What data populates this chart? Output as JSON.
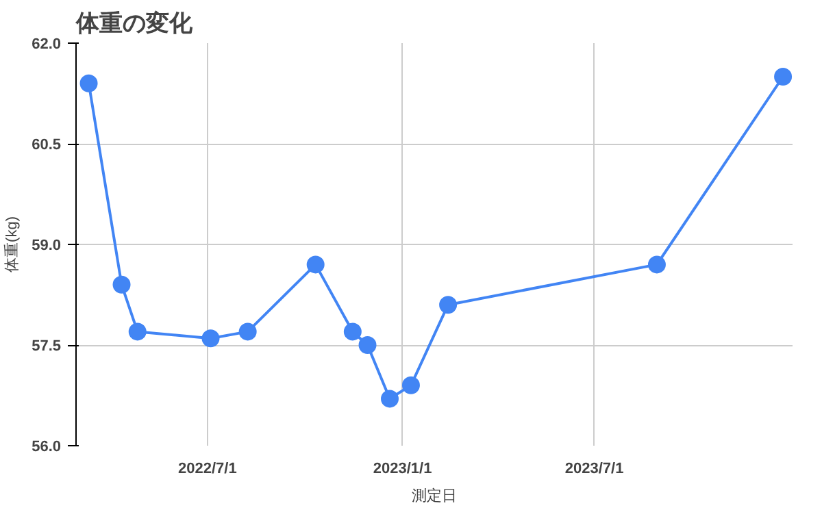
{
  "chart_data": {
    "type": "line",
    "title": "体重の変化",
    "xlabel": "測定日",
    "ylabel": "体重(kg)",
    "x": [
      "2022-03-11",
      "2022-04-11",
      "2022-04-26",
      "2022-07-04",
      "2022-08-08",
      "2022-10-11",
      "2022-11-15",
      "2022-11-29",
      "2022-12-20",
      "2023-01-09",
      "2023-02-13",
      "2023-08-29",
      "2023-12-26"
    ],
    "series": [
      {
        "color": "#4285f4",
        "values": [
          61.4,
          58.4,
          57.7,
          57.6,
          57.7,
          58.7,
          57.7,
          57.5,
          56.7,
          56.9,
          58.1,
          58.7,
          61.5
        ]
      }
    ],
    "xlim": [
      "2022-02-27",
      "2024-01-04"
    ],
    "xticks": [
      {
        "value": "2022-07-01",
        "label": "2022/7/1"
      },
      {
        "value": "2023-01-01",
        "label": "2023/1/1"
      },
      {
        "value": "2023-07-01",
        "label": "2023/7/1"
      }
    ],
    "ylim": [
      56,
      62
    ],
    "yticks": [
      {
        "value": 56,
        "label": "56.0"
      },
      {
        "value": 57.5,
        "label": "57.5"
      },
      {
        "value": 59,
        "label": "59.0"
      },
      {
        "value": 60.5,
        "label": "60.5"
      },
      {
        "value": 62,
        "label": "62.0"
      }
    ],
    "grid": true,
    "marker": "circle",
    "line_style": "solid"
  }
}
